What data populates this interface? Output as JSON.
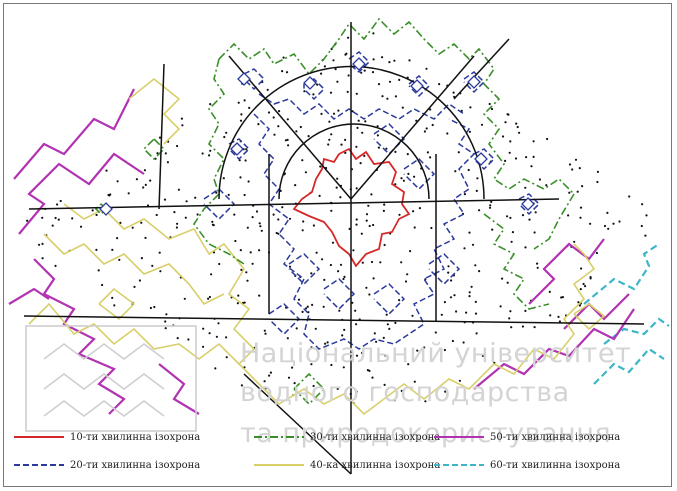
{
  "watermark": {
    "line1": "Національний університет",
    "line2": "водного господарства",
    "line3": "та природокористування"
  },
  "legend": [
    {
      "label": "10-ти хвилинна ізохрона",
      "color": "#d62828",
      "dash": "solid"
    },
    {
      "label": "20-ти хвилинна ізохрона",
      "color": "#2b3a9c",
      "dash": "dashed"
    },
    {
      "label": "30-ти хвилинна ізохрона",
      "color": "#3a8f2a",
      "dash": "dashdot"
    },
    {
      "label": "40-ка хвилинна ізохрона",
      "color": "#d8cf6a",
      "dash": "solid"
    },
    {
      "label": "50-ти хвилинна ізохрона",
      "color": "#b233b2",
      "dash": "solid"
    },
    {
      "label": "60-ти хвилинна ізохрона",
      "color": "#3cb6c8",
      "dash": "dashed"
    }
  ]
}
